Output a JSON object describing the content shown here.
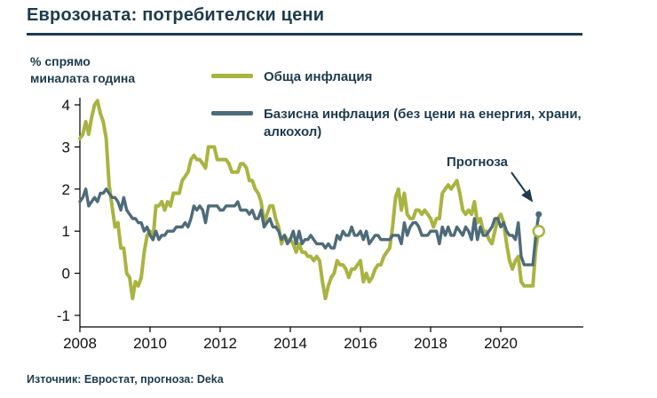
{
  "title": "Еврозоната: потребителски цени",
  "ylabel_lines": [
    "% спрямо",
    "миналата година"
  ],
  "legend": [
    {
      "label": "Обща инфлация",
      "color": "#a9b441"
    },
    {
      "label": "Базисна инфлация (без цени на енергия, храни, алкохол)",
      "color": "#4e6b79"
    }
  ],
  "annotation": "Прогноза",
  "source": "Източник: Евростат, прогноза: Deka",
  "colors": {
    "title": "#1d3b4e",
    "axis": "#000000",
    "tick_text": "#111111",
    "headline_series": "#a9b441",
    "core_series": "#4e6b79"
  },
  "chart_data": {
    "type": "line",
    "title": "Еврозоната: потребителски цени",
    "ylabel": "% спрямо миналата година",
    "x_start": 2008,
    "x_step": "monthly",
    "xlim": [
      2007.8,
      2021.8
    ],
    "ylim": [
      -1,
      4
    ],
    "xticks": [
      2008,
      2010,
      2012,
      2014,
      2016,
      2018,
      2020
    ],
    "yticks": [
      -1,
      0,
      1,
      2,
      3,
      4
    ],
    "grid": false,
    "legend_position": "top",
    "forecast_label": "Прогноза",
    "series": [
      {
        "name": "Обща инфлация",
        "color": "#a9b441",
        "values": [
          3.2,
          3.3,
          3.6,
          3.3,
          3.7,
          4.0,
          4.1,
          3.8,
          3.6,
          3.2,
          2.1,
          1.6,
          1.1,
          1.2,
          0.6,
          0.6,
          0.0,
          -0.1,
          -0.6,
          -0.2,
          -0.3,
          -0.1,
          0.5,
          0.9,
          1.0,
          0.8,
          1.6,
          1.6,
          1.7,
          1.5,
          1.7,
          1.6,
          1.9,
          1.9,
          1.9,
          2.2,
          2.3,
          2.4,
          2.7,
          2.8,
          2.7,
          2.7,
          2.6,
          2.5,
          3.0,
          3.0,
          3.0,
          2.7,
          2.7,
          2.7,
          2.7,
          2.6,
          2.4,
          2.4,
          2.4,
          2.6,
          2.6,
          2.5,
          2.2,
          2.2,
          2.0,
          1.9,
          1.7,
          1.2,
          1.4,
          1.6,
          1.6,
          1.3,
          1.1,
          0.7,
          0.9,
          0.8,
          0.8,
          0.7,
          0.5,
          0.7,
          0.5,
          0.5,
          0.4,
          0.4,
          0.3,
          0.4,
          0.3,
          -0.2,
          -0.6,
          -0.3,
          -0.1,
          0.0,
          0.3,
          0.2,
          0.2,
          0.1,
          -0.1,
          0.1,
          0.1,
          0.2,
          0.3,
          -0.2,
          0.0,
          -0.2,
          -0.1,
          0.1,
          0.2,
          0.2,
          0.4,
          0.5,
          0.6,
          1.1,
          1.8,
          2.0,
          1.5,
          1.9,
          1.4,
          1.3,
          1.3,
          1.5,
          1.5,
          1.4,
          1.5,
          1.4,
          1.3,
          1.1,
          1.3,
          1.3,
          1.9,
          2.0,
          2.1,
          2.0,
          2.1,
          2.2,
          1.9,
          1.5,
          1.4,
          1.5,
          1.4,
          1.7,
          1.2,
          1.3,
          1.0,
          1.0,
          0.8,
          0.7,
          1.0,
          1.3,
          1.4,
          1.2,
          0.7,
          0.3,
          0.1,
          0.3,
          0.4,
          -0.2,
          -0.3,
          -0.3,
          -0.3,
          -0.3
        ],
        "forecast": [
          0.6,
          1.0
        ]
      },
      {
        "name": "Базисна инфлация (без цени на енергия, храни, алкохол)",
        "color": "#4e6b79",
        "values": [
          1.7,
          1.8,
          2.0,
          1.6,
          1.7,
          1.8,
          1.7,
          1.9,
          1.9,
          2.0,
          1.9,
          1.8,
          1.8,
          1.7,
          1.5,
          1.8,
          1.5,
          1.4,
          1.3,
          1.3,
          1.2,
          1.2,
          1.0,
          1.1,
          0.9,
          0.8,
          1.0,
          0.8,
          0.9,
          0.9,
          1.0,
          1.0,
          1.0,
          1.1,
          1.1,
          1.1,
          1.2,
          1.1,
          1.3,
          1.6,
          1.5,
          1.6,
          1.5,
          1.2,
          1.6,
          1.6,
          1.6,
          1.6,
          1.5,
          1.5,
          1.6,
          1.6,
          1.6,
          1.6,
          1.7,
          1.5,
          1.5,
          1.5,
          1.4,
          1.5,
          1.3,
          1.3,
          1.5,
          1.1,
          1.2,
          1.3,
          1.1,
          1.1,
          1.0,
          0.8,
          0.9,
          0.7,
          0.8,
          1.0,
          0.7,
          1.0,
          0.7,
          0.8,
          0.8,
          0.9,
          0.8,
          0.7,
          0.7,
          0.7,
          0.6,
          0.7,
          0.6,
          0.6,
          0.9,
          0.8,
          1.0,
          0.9,
          0.9,
          1.1,
          0.9,
          0.9,
          1.0,
          0.8,
          1.0,
          0.7,
          0.8,
          0.9,
          0.9,
          0.8,
          0.8,
          0.8,
          0.8,
          0.9,
          0.9,
          0.9,
          0.7,
          1.2,
          0.9,
          1.1,
          1.2,
          1.2,
          1.1,
          0.9,
          0.9,
          0.9,
          1.0,
          1.0,
          1.0,
          0.7,
          1.1,
          0.9,
          1.1,
          0.9,
          0.9,
          1.1,
          1.0,
          0.9,
          1.1,
          1.0,
          0.8,
          1.3,
          0.8,
          1.1,
          0.9,
          0.9,
          1.0,
          1.1,
          1.3,
          1.3,
          1.1,
          1.2,
          1.0,
          0.9,
          0.9,
          0.8,
          1.2,
          0.4,
          0.2,
          0.2,
          0.2,
          0.2
        ],
        "forecast": [
          0.9,
          1.4
        ]
      }
    ]
  }
}
